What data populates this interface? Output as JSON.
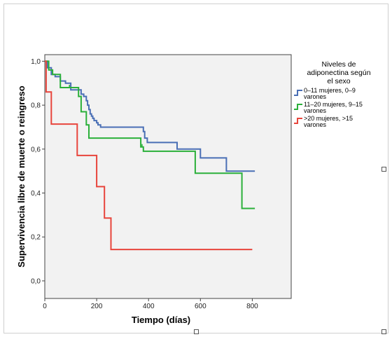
{
  "chart_data": {
    "type": "line",
    "step": true,
    "xlabel": "Tiempo (días)",
    "ylabel": "Supervivencia libre de muerte o reingreso",
    "xlim": [
      0,
      950
    ],
    "ylim": [
      -0.08,
      1.03
    ],
    "xticks": [
      0,
      200,
      400,
      600,
      800
    ],
    "xtick_labels": [
      "0",
      "200",
      "400",
      "600",
      "800"
    ],
    "yticks": [
      0.0,
      0.2,
      0.4,
      0.6,
      0.8,
      1.0
    ],
    "ytick_labels": [
      "0,0",
      "0,2",
      "0,4",
      "0,6",
      "0,8",
      "1,0"
    ],
    "grid": false,
    "legend": {
      "title": "Niveles de adiponectina según el sexo",
      "title_lines": [
        "Niveles de",
        "adiponectina según",
        "el sexo"
      ],
      "placement": "right"
    },
    "series": [
      {
        "name": "0–11 mujeres, 0–9 varones",
        "name_lines": [
          "0–11 mujeres, 0–9",
          "varones"
        ],
        "color": "#4a6fb5",
        "x": [
          0,
          10,
          25,
          40,
          60,
          80,
          100,
          140,
          150,
          160,
          165,
          170,
          175,
          180,
          185,
          190,
          200,
          205,
          215,
          240,
          255,
          270,
          320,
          380,
          385,
          395,
          400,
          420,
          510,
          600,
          660,
          700,
          810
        ],
        "y": [
          1.0,
          0.97,
          0.94,
          0.93,
          0.91,
          0.9,
          0.87,
          0.85,
          0.84,
          0.82,
          0.8,
          0.78,
          0.76,
          0.75,
          0.74,
          0.73,
          0.72,
          0.71,
          0.7,
          0.7,
          0.7,
          0.7,
          0.7,
          0.68,
          0.65,
          0.63,
          0.63,
          0.63,
          0.6,
          0.56,
          0.56,
          0.5,
          0.5
        ]
      },
      {
        "name": "11–20 mujeres, 9–15 varones",
        "name_lines": [
          "11–20 mujeres, 9–15",
          "varones"
        ],
        "color": "#2bb03a",
        "x": [
          0,
          15,
          30,
          60,
          95,
          130,
          140,
          160,
          170,
          370,
          380,
          580,
          760,
          810
        ],
        "y": [
          1.0,
          0.96,
          0.94,
          0.88,
          0.88,
          0.84,
          0.77,
          0.71,
          0.65,
          0.61,
          0.59,
          0.49,
          0.33,
          0.33
        ],
        "censored": [
          [
            95,
            0.88
          ],
          [
            375,
            0.61
          ],
          [
            380,
            0.59
          ]
        ]
      },
      {
        "name": ">20 mujeres,  >15 varones",
        "name_lines": [
          ">20 mujeres,  >15",
          "varones"
        ],
        "color": "#e8453c",
        "x": [
          0,
          5,
          25,
          125,
          200,
          230,
          255,
          800
        ],
        "y": [
          1.0,
          0.86,
          0.714,
          0.571,
          0.429,
          0.286,
          0.143,
          0.143
        ]
      }
    ]
  }
}
